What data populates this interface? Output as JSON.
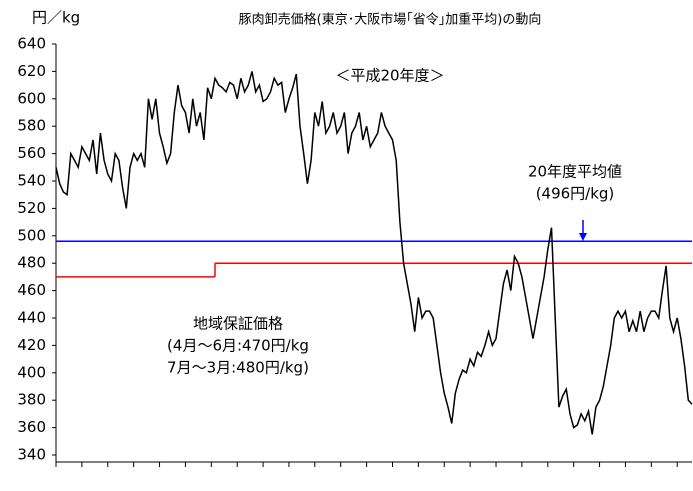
{
  "chart_data": {
    "type": "line",
    "title": "豚肉卸売価格(東京･大阪市場｢省令｣加重平均)の動向",
    "y_label": "円／kg",
    "subtitle": "＜平成20年度＞",
    "series": [
      {
        "color": "#000000",
        "values": [
          550,
          538,
          532,
          530,
          560,
          555,
          550,
          565,
          560,
          555,
          570,
          545,
          575,
          555,
          545,
          540,
          560,
          555,
          535,
          520,
          550,
          560,
          555,
          560,
          550,
          600,
          585,
          600,
          575,
          565,
          553,
          560,
          590,
          610,
          595,
          590,
          575,
          600,
          580,
          590,
          570,
          608,
          600,
          615,
          610,
          608,
          605,
          612,
          610,
          600,
          615,
          605,
          610,
          620,
          605,
          610,
          598,
          600,
          605,
          615,
          610,
          612,
          590,
          600,
          608,
          618,
          580,
          560,
          538,
          555,
          590,
          580,
          598,
          575,
          580,
          590,
          575,
          580,
          590,
          560,
          575,
          580,
          590,
          570,
          580,
          565,
          570,
          575,
          590,
          580,
          575,
          570,
          555,
          510,
          480,
          465,
          450,
          430,
          455,
          440,
          445,
          445,
          440,
          420,
          400,
          385,
          375,
          363,
          385,
          395,
          402,
          400,
          410,
          405,
          415,
          412,
          420,
          430,
          420,
          425,
          445,
          465,
          475,
          460,
          485,
          480,
          470,
          455,
          440,
          425,
          440,
          455,
          470,
          490,
          506,
          440,
          375,
          383,
          388,
          370,
          360,
          362,
          370,
          365,
          372,
          355,
          375,
          380,
          390,
          405,
          420,
          440,
          445,
          440,
          445,
          430,
          438,
          430,
          445,
          430,
          440,
          445,
          445,
          440,
          460,
          478,
          440,
          430,
          440,
          425,
          405,
          380,
          377
        ]
      }
    ],
    "xlim": [
      0,
      172
    ],
    "xticks": [
      0,
      7,
      14,
      21,
      28,
      35,
      42,
      49,
      56,
      63,
      70,
      77,
      84,
      91,
      98,
      105,
      112,
      119,
      126,
      133,
      140,
      147,
      154,
      161,
      168
    ],
    "ylim": [
      340,
      640
    ],
    "yticks": [
      340,
      360,
      380,
      400,
      420,
      440,
      460,
      480,
      500,
      520,
      540,
      560,
      580,
      600,
      620,
      640
    ],
    "reference_lines": [
      {
        "color": "#0000ff",
        "segments": [
          {
            "x": [
              0,
              172
            ],
            "value": 496
          }
        ]
      },
      {
        "color": "#ff0000",
        "segments": [
          {
            "x": [
              0,
              43
            ],
            "value": 470
          },
          {
            "x": [
              43,
              172
            ],
            "value": 480
          }
        ]
      }
    ],
    "annotations": {
      "average": {
        "color": "#0000ff",
        "lines": [
          "20年度平均値",
          "(496円/kg)"
        ]
      },
      "guarantee": {
        "color": "#ff0000",
        "lines": [
          "地域保証価格",
          "(4月～6月:470円/kg",
          "7月～3月:480円/kg)"
        ]
      }
    }
  }
}
